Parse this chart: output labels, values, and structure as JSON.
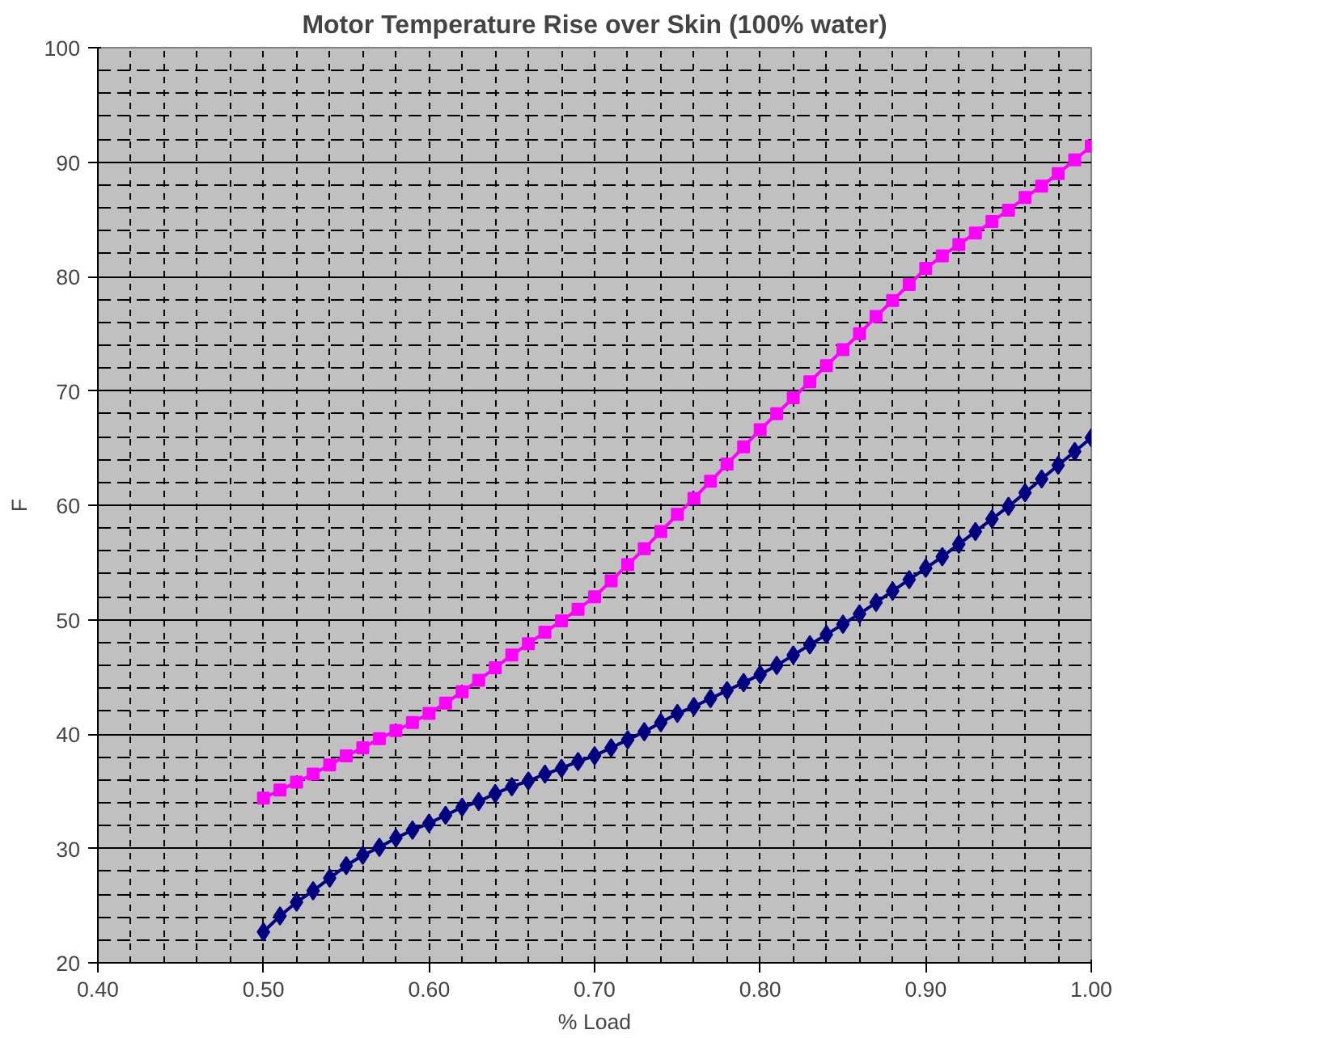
{
  "chart_data": {
    "type": "line",
    "title": "Motor Temperature Rise over Skin (100% water)",
    "xlabel": "% Load",
    "ylabel": "F",
    "x": [
      0.5,
      0.51,
      0.52,
      0.53,
      0.54,
      0.55,
      0.56,
      0.57,
      0.58,
      0.59,
      0.6,
      0.61,
      0.62,
      0.63,
      0.64,
      0.65,
      0.66,
      0.67,
      0.68,
      0.69,
      0.7,
      0.71,
      0.72,
      0.73,
      0.74,
      0.75,
      0.76,
      0.77,
      0.78,
      0.79,
      0.8,
      0.81,
      0.82,
      0.83,
      0.84,
      0.85,
      0.86,
      0.87,
      0.88,
      0.89,
      0.9,
      0.91,
      0.92,
      0.93,
      0.94,
      0.95,
      0.96,
      0.97,
      0.98,
      0.99,
      1.0
    ],
    "series": [
      {
        "color": "#000080",
        "marker": "diamond",
        "values": [
          22.7,
          24.1,
          25.3,
          26.3,
          27.4,
          28.5,
          29.4,
          30.1,
          30.9,
          31.6,
          32.2,
          32.9,
          33.6,
          34.1,
          34.8,
          35.4,
          35.9,
          36.5,
          37.0,
          37.6,
          38.1,
          38.8,
          39.5,
          40.2,
          41.0,
          41.8,
          42.4,
          43.1,
          43.8,
          44.5,
          45.2,
          46.0,
          46.9,
          47.8,
          48.7,
          49.6,
          50.5,
          51.5,
          52.5,
          53.5,
          54.5,
          55.5,
          56.6,
          57.7,
          58.8,
          59.9,
          61.1,
          62.3,
          63.5,
          64.7,
          65.9
        ]
      },
      {
        "color": "#ff00ff",
        "marker": "square",
        "values": [
          34.4,
          35.1,
          35.8,
          36.5,
          37.3,
          38.1,
          38.8,
          39.6,
          40.3,
          41.0,
          41.8,
          42.7,
          43.7,
          44.7,
          45.8,
          46.9,
          47.9,
          48.9,
          49.9,
          50.9,
          52.0,
          53.4,
          54.8,
          56.2,
          57.7,
          59.2,
          60.6,
          62.1,
          63.6,
          65.1,
          66.6,
          68.0,
          69.4,
          70.8,
          72.2,
          73.6,
          75.0,
          76.5,
          77.9,
          79.3,
          80.7,
          81.8,
          82.8,
          83.8,
          84.8,
          85.8,
          86.9,
          87.9,
          89.0,
          90.2,
          91.4
        ]
      }
    ],
    "xlim": [
      0.4,
      1.0
    ],
    "xticks": [
      {
        "value": 0.4,
        "label": "0.40"
      },
      {
        "value": 0.5,
        "label": "0.50"
      },
      {
        "value": 0.6,
        "label": "0.60"
      },
      {
        "value": 0.7,
        "label": "0.70"
      },
      {
        "value": 0.8,
        "label": "0.80"
      },
      {
        "value": 0.9,
        "label": "0.90"
      },
      {
        "value": 1.0,
        "label": "1.00"
      }
    ],
    "ylim": [
      20,
      100
    ],
    "yticks": [
      20,
      30,
      40,
      50,
      60,
      70,
      80,
      90,
      100
    ],
    "grid": true,
    "line_style": "solid"
  }
}
